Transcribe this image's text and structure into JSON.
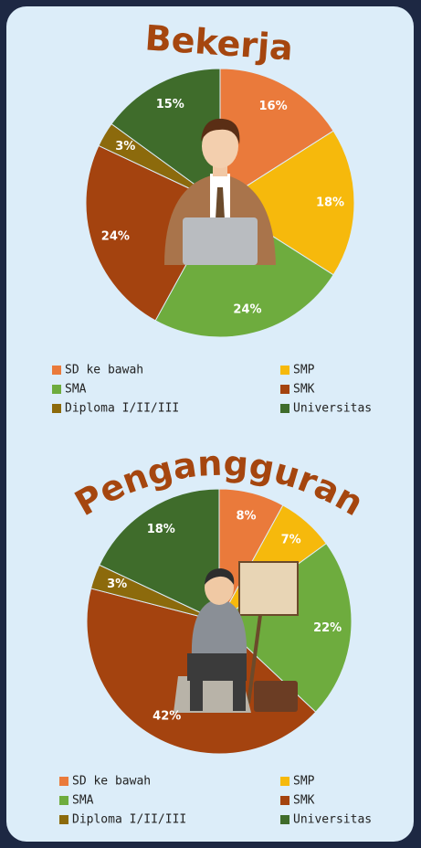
{
  "chart_data": [
    {
      "type": "pie",
      "title": "Bekerja",
      "categories": [
        "SD ke bawah",
        "SMP",
        "SMA",
        "SMK",
        "Diploma I/II/III",
        "Universitas"
      ],
      "values": [
        16,
        18,
        24,
        24,
        3,
        15
      ],
      "value_labels": [
        "16%",
        "18%",
        "24%",
        "24%",
        "3%",
        "15%"
      ],
      "colors": [
        "#ea7a3b",
        "#f6b90c",
        "#6eac3e",
        "#a4430f",
        "#8c6a0c",
        "#3f6c2b"
      ]
    },
    {
      "type": "pie",
      "title": "Pengangguran",
      "categories": [
        "SD ke bawah",
        "SMP",
        "SMA",
        "SMK",
        "Diploma I/II/III",
        "Universitas"
      ],
      "values": [
        8,
        7,
        22,
        42,
        3,
        18
      ],
      "value_labels": [
        "8%",
        "7%",
        "22%",
        "42%",
        "3%",
        "18%"
      ],
      "colors": [
        "#ea7a3b",
        "#f6b90c",
        "#6eac3e",
        "#a4430f",
        "#8c6a0c",
        "#3f6c2b"
      ]
    }
  ]
}
